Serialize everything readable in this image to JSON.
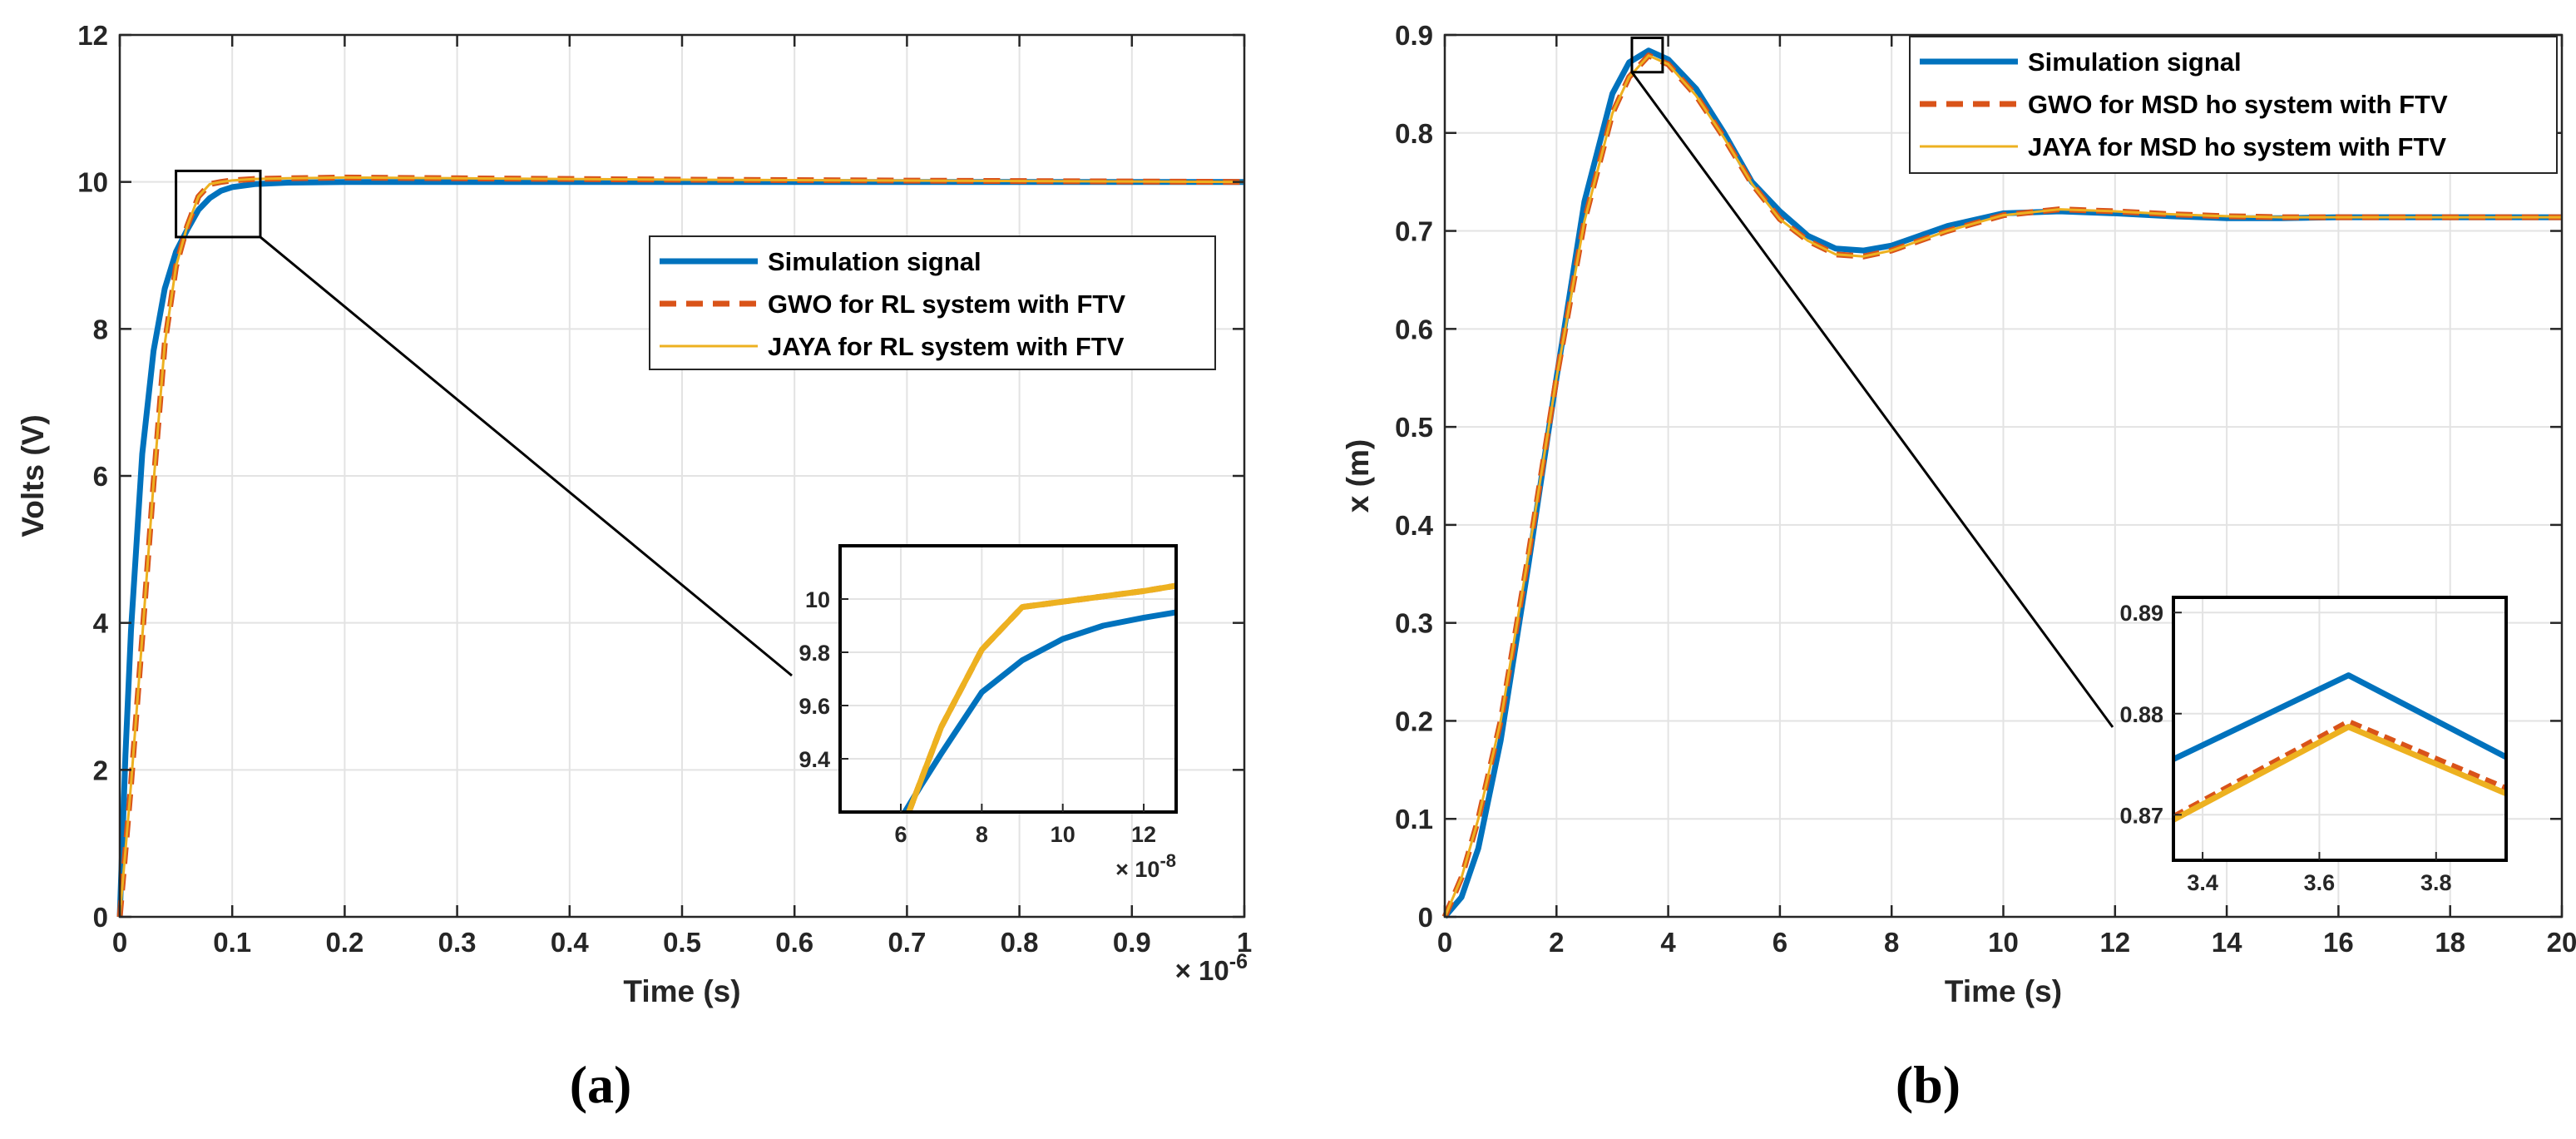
{
  "colors": {
    "sim": "#0072bd",
    "gwo": "#d95319",
    "jaya": "#edb120",
    "grid": "#e3e3e3",
    "axis": "#262626"
  },
  "chart_data": [
    {
      "id": "a",
      "type": "line",
      "caption": "(a)",
      "xlabel": "Time (s)",
      "ylabel": "Volts (V)",
      "xlim": [
        0,
        1
      ],
      "ylim": [
        0,
        12
      ],
      "x_exponent": "× 10",
      "x_exponent_power": "-6",
      "xticks": [
        0,
        0.1,
        0.2,
        0.3,
        0.4,
        0.5,
        0.6,
        0.7,
        0.8,
        0.9,
        1
      ],
      "xtick_labels": [
        "0",
        "0.1",
        "0.2",
        "0.3",
        "0.4",
        "0.5",
        "0.6",
        "0.7",
        "0.8",
        "0.9",
        "1"
      ],
      "yticks": [
        0,
        2,
        4,
        6,
        8,
        10,
        12
      ],
      "ytick_labels": [
        "0",
        "2",
        "4",
        "6",
        "8",
        "10",
        "12"
      ],
      "grid": true,
      "legend_position": "center-right",
      "legend": [
        "Simulation signal",
        "GWO for RL system with FTV",
        "JAYA for RL system with FTV"
      ],
      "series": [
        {
          "name": "Simulation signal",
          "x": [
            0,
            0.005,
            0.01,
            0.02,
            0.03,
            0.04,
            0.05,
            0.06,
            0.07,
            0.08,
            0.09,
            0.1,
            0.12,
            0.15,
            0.2,
            0.3,
            1
          ],
          "y": [
            0,
            2.2,
            3.9,
            6.3,
            7.7,
            8.55,
            9.05,
            9.35,
            9.62,
            9.78,
            9.88,
            9.93,
            9.97,
            9.99,
            10.0,
            10.0,
            10.0
          ]
        },
        {
          "name": "GWO for RL system with FTV",
          "x": [
            0,
            0.005,
            0.01,
            0.02,
            0.03,
            0.04,
            0.05,
            0.06,
            0.07,
            0.08,
            0.09,
            0.1,
            0.12,
            0.15,
            0.2,
            0.3,
            0.5,
            1
          ],
          "y": [
            0,
            0.9,
            1.8,
            3.8,
            5.9,
            7.8,
            8.85,
            9.4,
            9.8,
            9.97,
            10.0,
            10.02,
            10.04,
            10.05,
            10.06,
            10.05,
            10.03,
            10.0
          ]
        },
        {
          "name": "JAYA for RL system with FTV",
          "x": [
            0,
            0.005,
            0.01,
            0.02,
            0.03,
            0.04,
            0.05,
            0.06,
            0.07,
            0.08,
            0.09,
            0.1,
            0.12,
            0.15,
            0.2,
            0.3,
            0.5,
            1
          ],
          "y": [
            0,
            0.9,
            1.8,
            3.8,
            5.9,
            7.8,
            8.85,
            9.4,
            9.8,
            9.97,
            10.0,
            10.02,
            10.04,
            10.05,
            10.06,
            10.05,
            10.03,
            10.0
          ]
        }
      ],
      "zoom_box": {
        "xlim": [
          0.05,
          0.125
        ],
        "ylim": [
          9.25,
          10.15
        ]
      },
      "inset": {
        "xlim": [
          4.5,
          12.8
        ],
        "ylim": [
          9.2,
          10.2
        ],
        "xticks": [
          6,
          8,
          10,
          12
        ],
        "xtick_labels": [
          "6",
          "8",
          "10",
          "12"
        ],
        "yticks": [
          9.4,
          9.6,
          9.8,
          10
        ],
        "ytick_labels": [
          "9.4",
          "9.6",
          "9.8",
          "10"
        ],
        "x_exponent": "× 10",
        "x_exponent_power": "-8",
        "series": [
          {
            "name": "Simulation signal",
            "x": [
              6.1,
              6.5,
              7,
              8,
              9,
              10,
              11,
              12,
              12.8
            ],
            "y": [
              9.2,
              9.3,
              9.42,
              9.65,
              9.77,
              9.85,
              9.9,
              9.93,
              9.95
            ]
          },
          {
            "name": "GWO for RL system with FTV",
            "x": [
              6.2,
              6.5,
              7,
              8,
              9,
              10,
              11,
              12,
              12.8
            ],
            "y": [
              9.2,
              9.32,
              9.52,
              9.81,
              9.97,
              9.99,
              10.01,
              10.03,
              10.05
            ]
          },
          {
            "name": "JAYA for RL system with FTV",
            "x": [
              6.2,
              6.5,
              7,
              8,
              9,
              10,
              11,
              12,
              12.8
            ],
            "y": [
              9.2,
              9.32,
              9.52,
              9.81,
              9.97,
              9.99,
              10.01,
              10.03,
              10.05
            ]
          }
        ]
      }
    },
    {
      "id": "b",
      "type": "line",
      "caption": "(b)",
      "xlabel": "Time (s)",
      "ylabel": "x (m)",
      "xlim": [
        0,
        20
      ],
      "ylim": [
        0,
        0.9
      ],
      "xticks": [
        0,
        2,
        4,
        6,
        8,
        10,
        12,
        14,
        16,
        18,
        20
      ],
      "xtick_labels": [
        "0",
        "2",
        "4",
        "6",
        "8",
        "10",
        "12",
        "14",
        "16",
        "18",
        "20"
      ],
      "yticks": [
        0,
        0.1,
        0.2,
        0.3,
        0.4,
        0.5,
        0.6,
        0.7,
        0.8,
        0.9
      ],
      "ytick_labels": [
        "0",
        "0.1",
        "0.2",
        "0.3",
        "0.4",
        "0.5",
        "0.6",
        "0.7",
        "0.8",
        "0.9"
      ],
      "grid": true,
      "legend_position": "top-right",
      "legend": [
        "Simulation signal",
        "GWO for MSD ho system with FTV",
        "JAYA for MSD ho system with FTV"
      ],
      "series": [
        {
          "name": "Simulation signal",
          "x": [
            0,
            0.3,
            0.6,
            1,
            1.5,
            2,
            2.5,
            3,
            3.3,
            3.65,
            4,
            4.5,
            5,
            5.5,
            6,
            6.5,
            7,
            7.5,
            8,
            9,
            10,
            11,
            12,
            13,
            14,
            15,
            16,
            17,
            18,
            19,
            20
          ],
          "y": [
            0,
            0.02,
            0.07,
            0.18,
            0.36,
            0.55,
            0.73,
            0.84,
            0.872,
            0.884,
            0.875,
            0.845,
            0.8,
            0.75,
            0.72,
            0.695,
            0.682,
            0.68,
            0.685,
            0.705,
            0.718,
            0.72,
            0.718,
            0.715,
            0.713,
            0.713,
            0.714,
            0.714,
            0.714,
            0.714,
            0.714
          ]
        },
        {
          "name": "GWO for MSD ho system with FTV",
          "x": [
            0,
            0.3,
            0.6,
            1,
            1.5,
            2,
            2.5,
            3,
            3.3,
            3.65,
            4,
            4.5,
            5,
            5.5,
            6,
            6.5,
            7,
            7.5,
            8,
            9,
            10,
            11,
            12,
            13,
            14,
            15,
            16,
            17,
            18,
            19,
            20
          ],
          "y": [
            0,
            0.04,
            0.1,
            0.2,
            0.37,
            0.55,
            0.71,
            0.82,
            0.857,
            0.879,
            0.87,
            0.838,
            0.795,
            0.748,
            0.712,
            0.69,
            0.676,
            0.674,
            0.68,
            0.7,
            0.716,
            0.722,
            0.72,
            0.717,
            0.715,
            0.714,
            0.714,
            0.714,
            0.714,
            0.714,
            0.714
          ]
        },
        {
          "name": "JAYA for MSD ho system with FTV",
          "x": [
            0,
            0.3,
            0.6,
            1,
            1.5,
            2,
            2.5,
            3,
            3.3,
            3.65,
            4,
            4.5,
            5,
            5.5,
            6,
            6.5,
            7,
            7.5,
            8,
            9,
            10,
            11,
            12,
            13,
            14,
            15,
            16,
            17,
            18,
            19,
            20
          ],
          "y": [
            0,
            0.04,
            0.1,
            0.2,
            0.37,
            0.55,
            0.71,
            0.82,
            0.857,
            0.879,
            0.87,
            0.838,
            0.795,
            0.748,
            0.712,
            0.69,
            0.676,
            0.674,
            0.68,
            0.7,
            0.716,
            0.722,
            0.72,
            0.717,
            0.715,
            0.714,
            0.714,
            0.714,
            0.714,
            0.714,
            0.714
          ]
        }
      ],
      "zoom_box": {
        "xlim": [
          3.35,
          3.9
        ],
        "ylim": [
          0.862,
          0.897
        ]
      },
      "inset": {
        "xlim": [
          3.35,
          3.92
        ],
        "ylim": [
          0.8655,
          0.8915
        ],
        "xticks": [
          3.4,
          3.6,
          3.8
        ],
        "xtick_labels": [
          "3.4",
          "3.6",
          "3.8"
        ],
        "yticks": [
          0.87,
          0.88,
          0.89
        ],
        "ytick_labels": [
          "0.87",
          "0.88",
          "0.89"
        ],
        "series": [
          {
            "name": "Simulation signal",
            "x": [
              3.35,
              3.65,
              3.92
            ],
            "y": [
              0.8755,
              0.8838,
              0.8757
            ]
          },
          {
            "name": "GWO for MSD ho system with FTV",
            "x": [
              3.35,
              3.65,
              3.92
            ],
            "y": [
              0.8698,
              0.8792,
              0.8726
            ]
          },
          {
            "name": "JAYA for MSD ho system with FTV",
            "x": [
              3.35,
              3.65,
              3.92
            ],
            "y": [
              0.8695,
              0.8787,
              0.8721
            ]
          }
        ]
      }
    }
  ]
}
